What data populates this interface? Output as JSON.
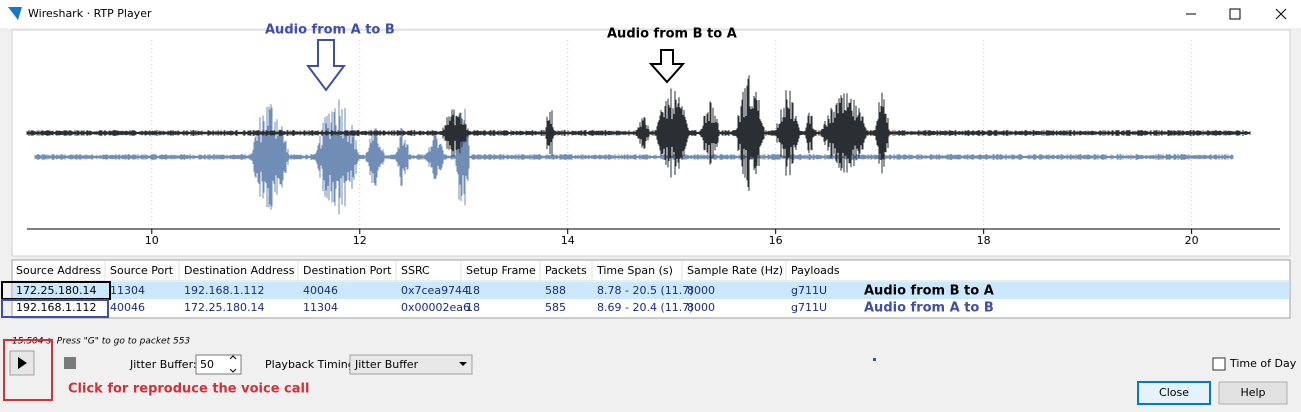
{
  "window": {
    "title": "Wireshark · RTP Player"
  },
  "plot": {
    "annotations": [
      "Audio from A to B",
      "Audio from B to A"
    ],
    "xlim": [
      8.8,
      20.85
    ],
    "xticks": [
      10,
      12,
      14,
      16,
      18,
      20
    ],
    "grid": true
  },
  "table": {
    "columns": [
      "Source Address",
      "Source Port",
      "Destination Address",
      "Destination Port",
      "SSRC",
      "Setup Frame",
      "Packets",
      "Time Span (s)",
      "Sample Rate (Hz)",
      "Payloads"
    ],
    "rows": [
      [
        "172.25.180.14",
        "11304",
        "192.168.1.112",
        "40046",
        "0x7cea9744",
        "18",
        "588",
        "8.78 - 20.5 (11.7)",
        "8000",
        "g711U"
      ],
      [
        "192.168.1.112",
        "40046",
        "172.25.180.14",
        "11304",
        "0x00002ea6",
        "18",
        "585",
        "8.69 - 20.4 (11.7)",
        "8000",
        "g711U"
      ]
    ],
    "row_annotations": [
      "Audio from B to A",
      "Audio from A to B"
    ]
  },
  "status": "15.504 s. Press \"G\" to go to packet 553",
  "controls": {
    "jitter_label": "Jitter Buffer:",
    "jitter_value": "50",
    "timing_label": "Playback Timing:",
    "timing_value": "Jitter Buffer",
    "time_of_day": "Time of Day",
    "close": "Close",
    "help": "Help"
  },
  "hint": "Click for reproduce the voice call"
}
